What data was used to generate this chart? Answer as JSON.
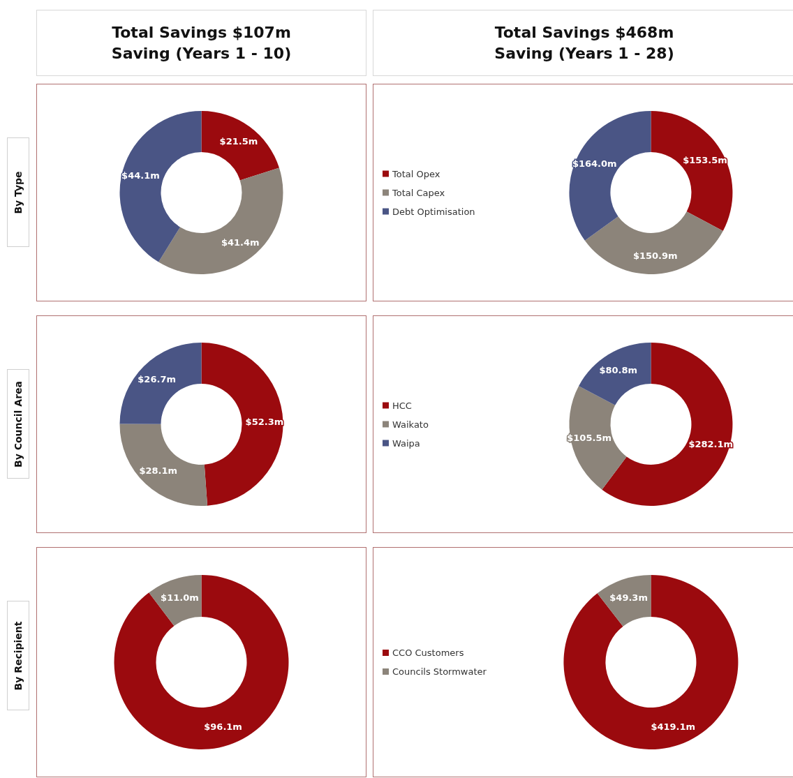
{
  "chart_data": [
    {
      "type": "donut",
      "title": "Total Savings $107m",
      "subtitle": "Saving (Years 1 - 10)",
      "ylabel": "By Type",
      "categories": [
        null,
        null,
        null
      ],
      "values": [
        21.5,
        41.4,
        44.1
      ],
      "value_labels": [
        "$21.5m",
        "$41.4m",
        "$44.1m"
      ],
      "colors": [
        "#9b0a0e",
        "#8c847a",
        "#4a5585"
      ],
      "legend": false
    },
    {
      "type": "donut",
      "title": "Total Savings $468m",
      "subtitle": "Saving (Years 1 - 28)",
      "categories": [
        "Total Opex",
        "Total Capex",
        "Debt Optimisation"
      ],
      "values": [
        153.5,
        150.9,
        164.0
      ],
      "value_labels": [
        "$153.5m",
        "$150.9m",
        "$164.0m"
      ],
      "colors": [
        "#9b0a0e",
        "#8c847a",
        "#4a5585"
      ],
      "legend": "left"
    },
    {
      "type": "donut",
      "ylabel": "By Council Area",
      "categories": [
        null,
        null,
        null
      ],
      "values": [
        52.3,
        28.1,
        26.7
      ],
      "value_labels": [
        "$52.3m",
        "$28.1m",
        "$26.7m"
      ],
      "colors": [
        "#9b0a0e",
        "#8c847a",
        "#4a5585"
      ],
      "legend": false
    },
    {
      "type": "donut",
      "categories": [
        "HCC",
        "Waikato",
        "Waipa"
      ],
      "values": [
        282.1,
        105.5,
        80.8
      ],
      "value_labels": [
        "$282.1m",
        "$105.5m",
        "$80.8m"
      ],
      "colors": [
        "#9b0a0e",
        "#8c847a",
        "#4a5585"
      ],
      "legend": "left"
    },
    {
      "type": "donut",
      "ylabel": "By Recipient",
      "categories": [
        null,
        null
      ],
      "values": [
        96.1,
        11.0
      ],
      "value_labels": [
        "$96.1m",
        "$11.0m"
      ],
      "colors": [
        "#9b0a0e",
        "#8c847a"
      ],
      "legend": false
    },
    {
      "type": "donut",
      "categories": [
        "CCO Customers",
        "Councils Stormwater"
      ],
      "values": [
        419.1,
        49.3
      ],
      "value_labels": [
        "$419.1m",
        "$49.3m"
      ],
      "colors": [
        "#9b0a0e",
        "#8c847a"
      ],
      "legend": "left"
    }
  ]
}
